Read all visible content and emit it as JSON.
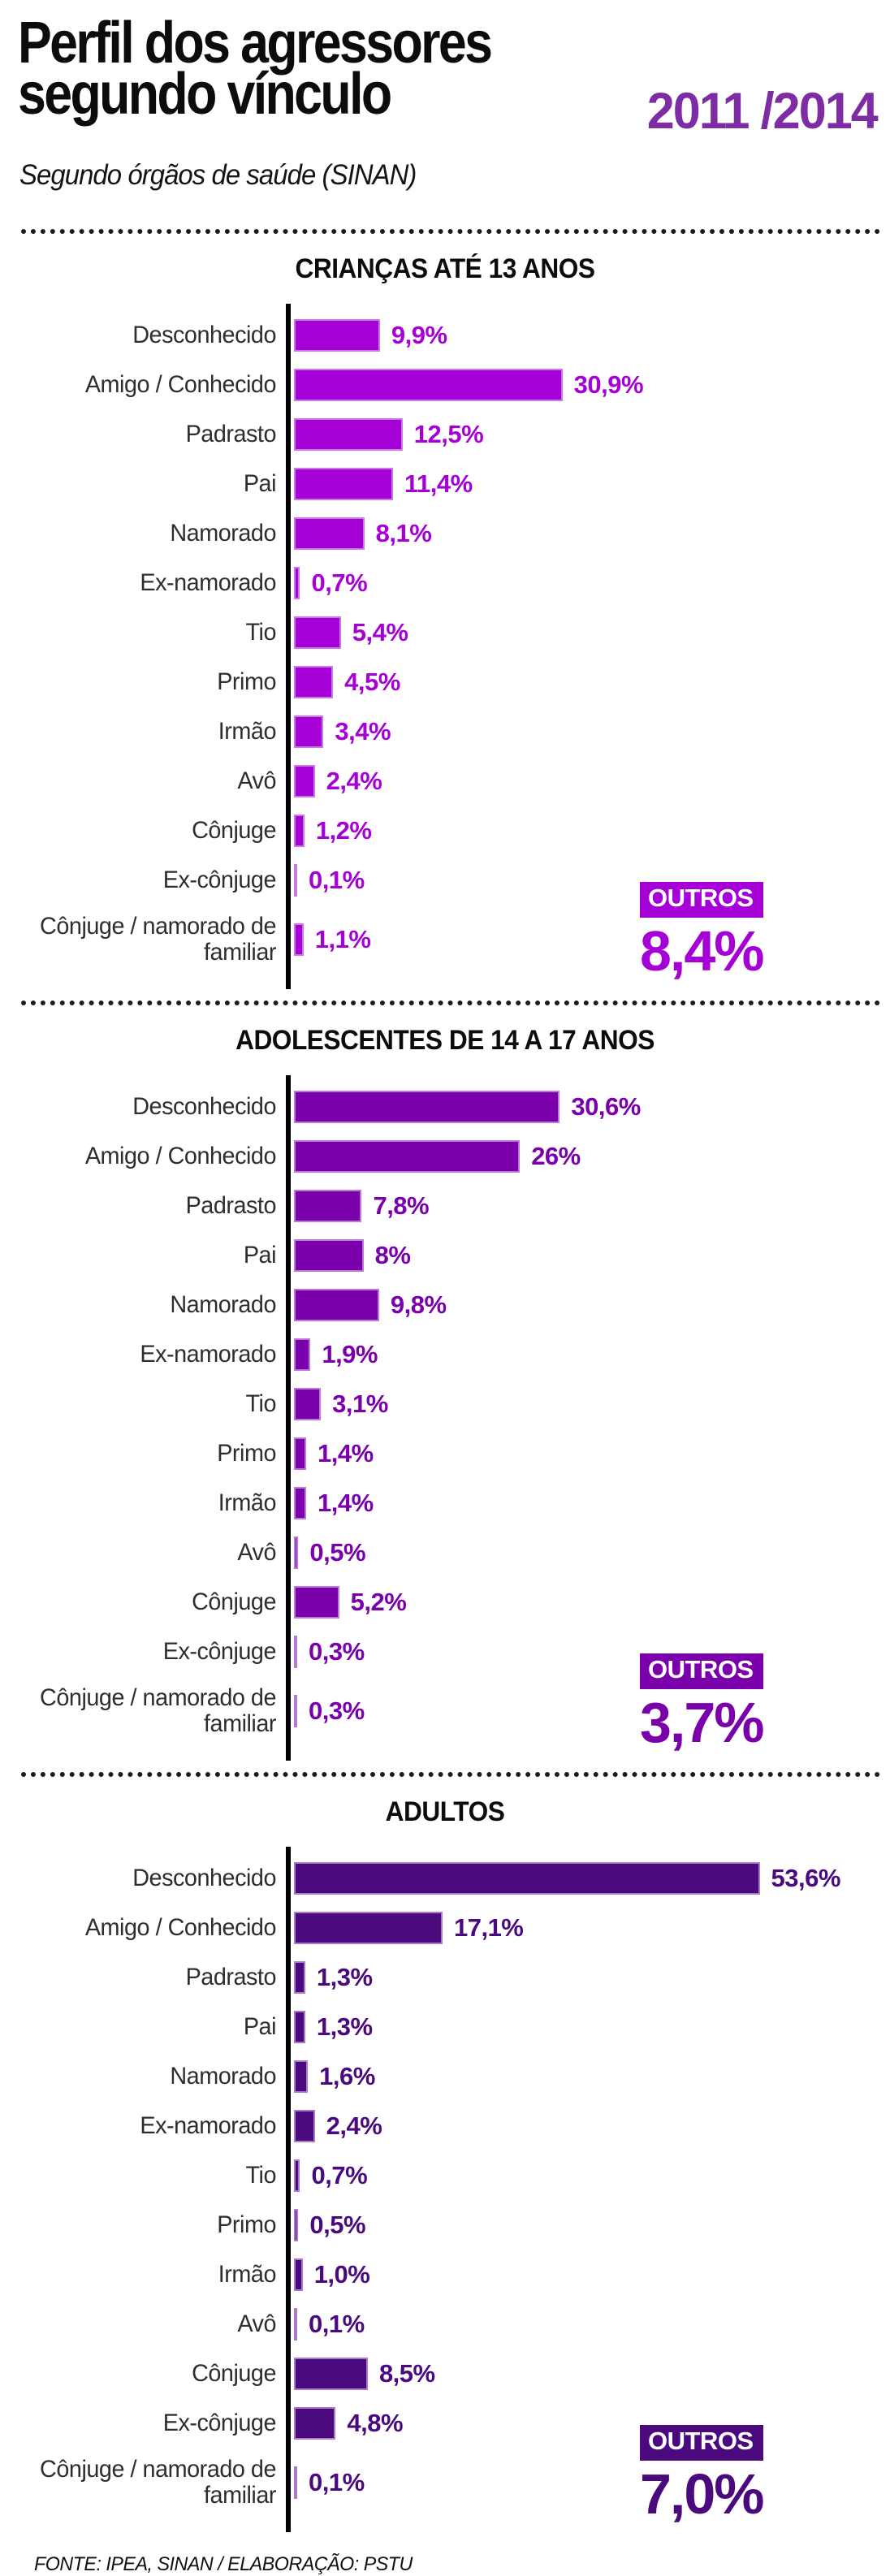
{
  "header": {
    "title_line1": "Perfil dos agressores",
    "title_line2": "segundo vínculo",
    "years": "2011 /2014",
    "subtitle": "Segundo órgãos de saúde (SINAN)",
    "years_color": "#7d2ca3"
  },
  "footer": {
    "source": "FONTE: IPEA, SINAN / ELABORAÇÃO: PSTU"
  },
  "chart_data": [
    {
      "type": "bar",
      "orientation": "horizontal",
      "title": "CRIANÇAS ATÉ 13 ANOS",
      "color": "#a500d6",
      "unit": "%",
      "xlim": [
        0,
        55
      ],
      "grid": false,
      "categories": [
        "Desconhecido",
        "Amigo / Conhecido",
        "Padrasto",
        "Pai",
        "Namorado",
        "Ex-namorado",
        "Tio",
        "Primo",
        "Irmão",
        "Avô",
        "Cônjuge",
        "Ex-cônjuge",
        "Cônjuge / namorado de familiar"
      ],
      "values": [
        9.9,
        30.9,
        12.5,
        11.4,
        8.1,
        0.7,
        5.4,
        4.5,
        3.4,
        2.4,
        1.2,
        0.1,
        1.1
      ],
      "value_labels": [
        "9,9%",
        "30,9%",
        "12,5%",
        "11,4%",
        "8,1%",
        "0,7%",
        "5,4%",
        "4,5%",
        "3,4%",
        "2,4%",
        "1,2%",
        "0,1%",
        "1,1%"
      ],
      "outros": {
        "label": "OUTROS",
        "value": "8,4%"
      }
    },
    {
      "type": "bar",
      "orientation": "horizontal",
      "title": "ADOLESCENTES DE 14 A 17 ANOS",
      "color": "#7a00ab",
      "unit": "%",
      "xlim": [
        0,
        55
      ],
      "grid": false,
      "categories": [
        "Desconhecido",
        "Amigo / Conhecido",
        "Padrasto",
        "Pai",
        "Namorado",
        "Ex-namorado",
        "Tio",
        "Primo",
        "Irmão",
        "Avô",
        "Cônjuge",
        "Ex-cônjuge",
        "Cônjuge / namorado de familiar"
      ],
      "values": [
        30.6,
        26,
        7.8,
        8,
        9.8,
        1.9,
        3.1,
        1.4,
        1.4,
        0.5,
        5.2,
        0.3,
        0.3
      ],
      "value_labels": [
        "30,6%",
        "26%",
        "7,8%",
        "8%",
        "9,8%",
        "1,9%",
        "3,1%",
        "1,4%",
        "1,4%",
        "0,5%",
        "5,2%",
        "0,3%",
        "0,3%"
      ],
      "outros": {
        "label": "OUTROS",
        "value": "3,7%"
      }
    },
    {
      "type": "bar",
      "orientation": "horizontal",
      "title": "ADULTOS",
      "color": "#4a0a7e",
      "unit": "%",
      "xlim": [
        0,
        55
      ],
      "grid": false,
      "categories": [
        "Desconhecido",
        "Amigo / Conhecido",
        "Padrasto",
        "Pai",
        "Namorado",
        "Ex-namorado",
        "Tio",
        "Primo",
        "Irmão",
        "Avô",
        "Cônjuge",
        "Ex-cônjuge",
        "Cônjuge / namorado de familiar"
      ],
      "values": [
        53.6,
        17.1,
        1.3,
        1.3,
        1.6,
        2.4,
        0.7,
        0.5,
        1.0,
        0.1,
        8.5,
        4.8,
        0.1
      ],
      "value_labels": [
        "53,6%",
        "17,1%",
        "1,3%",
        "1,3%",
        "1,6%",
        "2,4%",
        "0,7%",
        "0,5%",
        "1,0%",
        "0,1%",
        "8,5%",
        "4,8%",
        "0,1%"
      ],
      "outros": {
        "label": "OUTROS",
        "value": "7,0%"
      }
    }
  ]
}
